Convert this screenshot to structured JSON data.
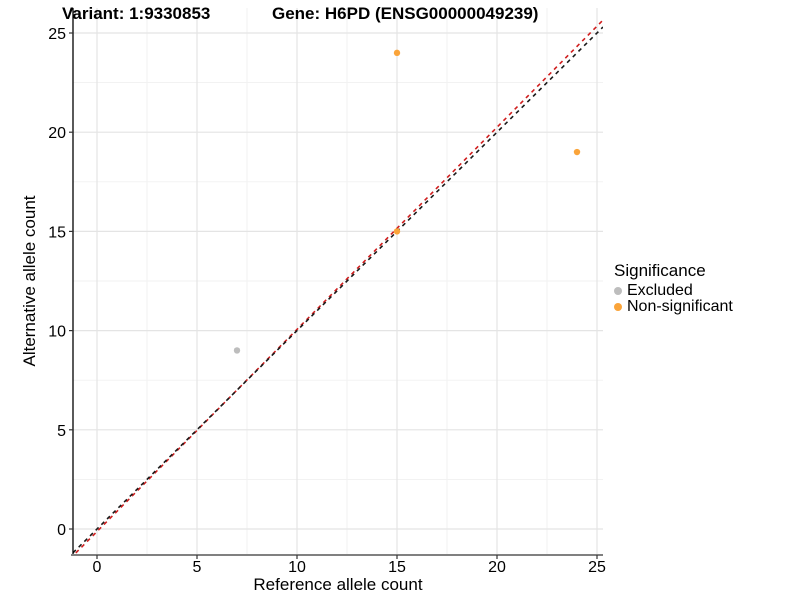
{
  "chart_data": {
    "type": "scatter",
    "title_left": "Variant: 1:9330853",
    "title_right": "Gene: H6PD (ENSG00000049239)",
    "xlabel": "Reference allele count",
    "ylabel": "Alternative allele count",
    "xlim": [
      -1.2,
      25.3
    ],
    "ylim": [
      -1.31,
      26.26
    ],
    "x_ticks": [
      0,
      5,
      10,
      15,
      20,
      25
    ],
    "y_ticks": [
      0,
      5,
      10,
      15,
      20,
      25
    ],
    "x_minor": [
      2.5,
      7.5,
      12.5,
      17.5,
      22.5
    ],
    "y_minor": [
      2.5,
      7.5,
      12.5,
      17.5,
      22.5
    ],
    "grid": true,
    "series": [
      {
        "name": "Excluded",
        "color": "#BDBDBD",
        "points": [
          [
            7,
            9
          ]
        ]
      },
      {
        "name": "Non-significant",
        "color": "#FAA43A",
        "points": [
          [
            15,
            15
          ],
          [
            15,
            24
          ],
          [
            24,
            19
          ]
        ]
      }
    ],
    "lines": [
      {
        "name": "fit-line",
        "color": "#D01E1E",
        "dash": "4 4",
        "dashoffset": 4,
        "x1": -1.2,
        "y1": -1.35,
        "x2": 25.3,
        "y2": 25.65
      },
      {
        "name": "identity-line",
        "color": "#1A1A1A",
        "dash": "4 4",
        "dashoffset": 0,
        "x1": -1.2,
        "y1": -1.2,
        "x2": 25.3,
        "y2": 25.3
      }
    ],
    "legend": {
      "title": "Significance",
      "position": "right",
      "items": [
        {
          "label": "Excluded",
          "color": "#BDBDBD"
        },
        {
          "label": "Non-significant",
          "color": "#FAA43A"
        }
      ]
    },
    "colors": {
      "grid_major": "#E4E4E4",
      "grid_minor": "#F1F1F1",
      "axis_line_y": "#000000",
      "axis_line_x": "#808080",
      "tick": "#333333"
    }
  }
}
